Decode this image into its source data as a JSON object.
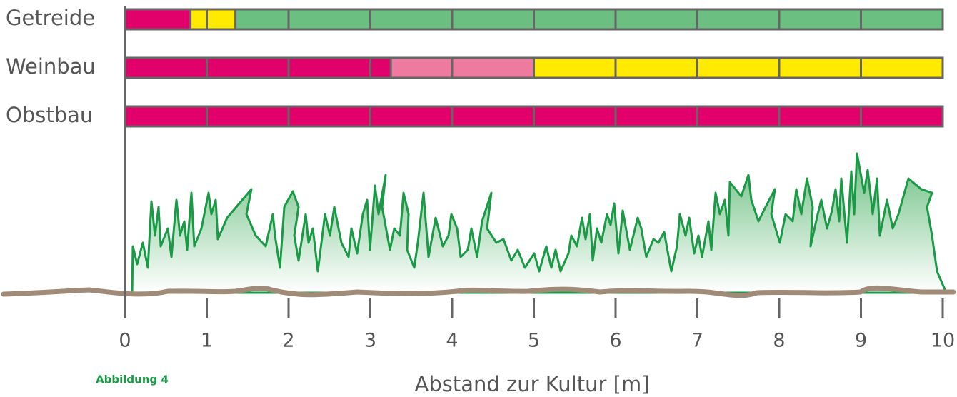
{
  "chart_data": {
    "type": "range-bar",
    "rows": [
      {
        "name": "Getreide",
        "segments": [
          {
            "start": 0,
            "end": 0.8,
            "color": "#e2006a"
          },
          {
            "start": 0.8,
            "end": 1.35,
            "color": "#ffea00"
          },
          {
            "start": 1.35,
            "end": 10,
            "color": "#6bbf80"
          }
        ]
      },
      {
        "name": "Weinbau",
        "segments": [
          {
            "start": 0,
            "end": 3.25,
            "color": "#e2006a"
          },
          {
            "start": 3.25,
            "end": 5,
            "color": "#ee7aa0"
          },
          {
            "start": 5,
            "end": 10,
            "color": "#ffea00"
          }
        ]
      },
      {
        "name": "Obstbau",
        "segments": [
          {
            "start": 0,
            "end": 10,
            "color": "#e2006a"
          }
        ]
      }
    ],
    "xlim": [
      0,
      10
    ],
    "xticks": [
      0,
      1,
      2,
      3,
      4,
      5,
      6,
      7,
      8,
      9,
      10
    ],
    "xlabel": "Abstand zur Kultur [m]",
    "caption": "Abbildung 4"
  }
}
